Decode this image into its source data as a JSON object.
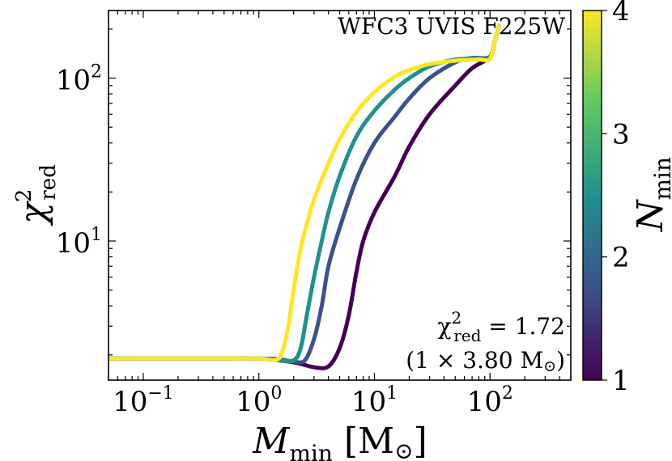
{
  "chart_data": {
    "type": "line",
    "title": "WFC3 UVIS F225W",
    "xlabel": "M_min [M_sun]",
    "ylabel": "chi^2_red",
    "xscale": "log",
    "yscale": "log",
    "xlim": [
      0.05,
      500
    ],
    "ylim": [
      1.4,
      260
    ],
    "xticks": [
      {
        "value": 0.1,
        "base": "10",
        "exp": "−1"
      },
      {
        "value": 1,
        "base": "10",
        "exp": "0"
      },
      {
        "value": 10,
        "base": "10",
        "exp": "1"
      },
      {
        "value": 100,
        "base": "10",
        "exp": "2"
      }
    ],
    "yticks": [
      {
        "value": 10,
        "base": "10",
        "exp": "1"
      },
      {
        "value": 100,
        "base": "10",
        "exp": "2"
      }
    ],
    "annotation": {
      "chi_label": "χ",
      "chi_sup": "2",
      "chi_sub": "red",
      "value_text": " = 1.72",
      "mass_text": "(1 × 3.80 M",
      "sun_symbol": "⊙",
      "close_paren": ")"
    },
    "colorbar": {
      "label": "N_min",
      "label_main": "N",
      "label_sub": "min",
      "range": [
        1,
        4
      ],
      "ticks": [
        "1",
        "2",
        "3",
        "4"
      ],
      "colors": [
        "#440154",
        "#3b528b",
        "#21918c",
        "#5ec962",
        "#fde725"
      ]
    },
    "series": [
      {
        "name": "N_min = 1",
        "color": "#440154",
        "x": [
          0.05,
          0.5,
          1.0,
          2.0,
          3.0,
          4.0,
          5.0,
          6.0,
          7.0,
          8.0,
          10,
          15,
          20,
          30,
          50,
          70,
          100,
          110,
          120
        ],
        "y": [
          1.9,
          1.9,
          1.9,
          1.8,
          1.68,
          1.7,
          2.2,
          3.5,
          6.5,
          10,
          15,
          25,
          38,
          60,
          90,
          115,
          135,
          170,
          210
        ]
      },
      {
        "name": "N_min = 2",
        "color": "#3b528b",
        "x": [
          0.05,
          0.5,
          1.0,
          1.5,
          2.0,
          2.5,
          3.0,
          3.5,
          4.0,
          5.0,
          7.0,
          10,
          15,
          20,
          30,
          50,
          70,
          100,
          110,
          120
        ],
        "y": [
          1.9,
          1.9,
          1.9,
          1.88,
          1.82,
          1.85,
          2.5,
          4.0,
          7.0,
          12,
          24,
          40,
          58,
          75,
          100,
          125,
          133,
          135,
          170,
          210
        ]
      },
      {
        "name": "N_min = 3",
        "color": "#21918c",
        "x": [
          0.05,
          0.5,
          1.0,
          1.5,
          2.0,
          2.3,
          2.6,
          3.0,
          3.5,
          4.0,
          5.0,
          7.0,
          10,
          15,
          20,
          30,
          50,
          80,
          100,
          110,
          120
        ],
        "y": [
          1.9,
          1.9,
          1.9,
          1.86,
          1.85,
          2.2,
          3.5,
          6.0,
          10,
          15,
          25,
          44,
          63,
          85,
          100,
          118,
          130,
          132,
          134,
          170,
          210
        ]
      },
      {
        "name": "N_min = 4",
        "color": "#fde725",
        "x": [
          0.05,
          0.5,
          1.0,
          1.4,
          1.6,
          1.8,
          2.0,
          2.3,
          2.7,
          3.0,
          4.0,
          5.0,
          7.0,
          10,
          15,
          20,
          30,
          50,
          80,
          100,
          110,
          120
        ],
        "y": [
          1.9,
          1.9,
          1.9,
          1.86,
          2.1,
          3.0,
          5.0,
          9.0,
          14,
          18,
          30,
          42,
          62,
          82,
          102,
          112,
          122,
          128,
          130,
          131,
          170,
          210
        ]
      }
    ]
  }
}
